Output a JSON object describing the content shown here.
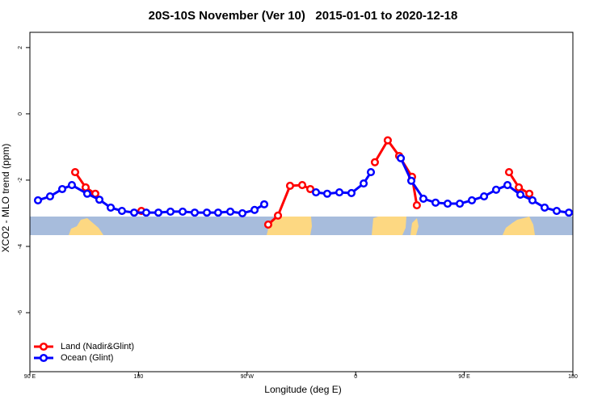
{
  "chart_data": {
    "type": "line",
    "title": "20S-10S November (Ver 10)   2015-01-01 to 2020-12-18",
    "xlabel": "Longitude (deg E)",
    "ylabel": "XCO2 - MLO trend (ppm)",
    "xlim": [
      90,
      540
    ],
    "xticks": [
      {
        "value": 90,
        "label": "90 E"
      },
      180,
      {
        "value": 270,
        "label": "90 W"
      },
      {
        "value": 360,
        "label": "0"
      },
      {
        "value": 450,
        "label": "90 E"
      },
      {
        "value": 540,
        "label": "180"
      }
    ],
    "ylim": [
      2.46,
      -7.78
    ],
    "yticks": [
      2,
      0,
      -2,
      -4,
      -6
    ],
    "legend": "bottomleft",
    "series": [
      {
        "name": "Land (Nadir&Glint)",
        "color": "#ff0000",
        "x": [
          127.5,
          136.2,
          144.2,
          160,
          182.4,
          240,
          287.5,
          295.6,
          305.6,
          315.7,
          322.4,
          350,
          375.9,
          386.6,
          396.0,
          406.7,
          410.7,
          450,
          487.1,
          495.2,
          503.9
        ],
        "values": [
          -1.76,
          -2.22,
          -2.41,
          null,
          -2.93,
          null,
          -3.34,
          -3.07,
          -2.17,
          -2.15,
          -2.27,
          null,
          -1.46,
          -0.8,
          -1.27,
          -1.9,
          -2.76,
          null,
          -1.76,
          -2.22,
          -2.41
        ]
      },
      {
        "name": "Ocean (Glint)",
        "color": "#0000ff",
        "x": [
          96.7,
          106.7,
          116.8,
          124.8,
          137.5,
          147.6,
          157.0,
          166.3,
          176.4,
          186.4,
          196.5,
          206.5,
          216.6,
          226.6,
          236.7,
          246.0,
          256.1,
          266.1,
          276.2,
          284.2,
          305,
          327.1,
          336.4,
          346.5,
          356.5,
          366.6,
          372.6,
          385,
          397.4,
          406.1,
          416.1,
          426.2,
          436.2,
          446.3,
          456.3,
          466.4,
          476.4,
          485.8,
          496.5,
          506.5,
          516.6,
          526.6,
          536.7
        ],
        "values": [
          -2.61,
          -2.49,
          -2.27,
          -2.15,
          -2.41,
          -2.59,
          -2.83,
          -2.93,
          -2.98,
          -2.98,
          -2.98,
          -2.95,
          -2.95,
          -2.98,
          -2.98,
          -2.98,
          -2.95,
          -3.0,
          -2.9,
          -2.73,
          null,
          -2.37,
          -2.41,
          -2.37,
          -2.39,
          -2.1,
          -1.76,
          null,
          -1.34,
          -2.02,
          -2.56,
          -2.68,
          -2.71,
          -2.71,
          -2.61,
          -2.49,
          -2.29,
          -2.15,
          -2.44,
          -2.61,
          -2.83,
          -2.93,
          -2.98
        ]
      }
    ]
  }
}
